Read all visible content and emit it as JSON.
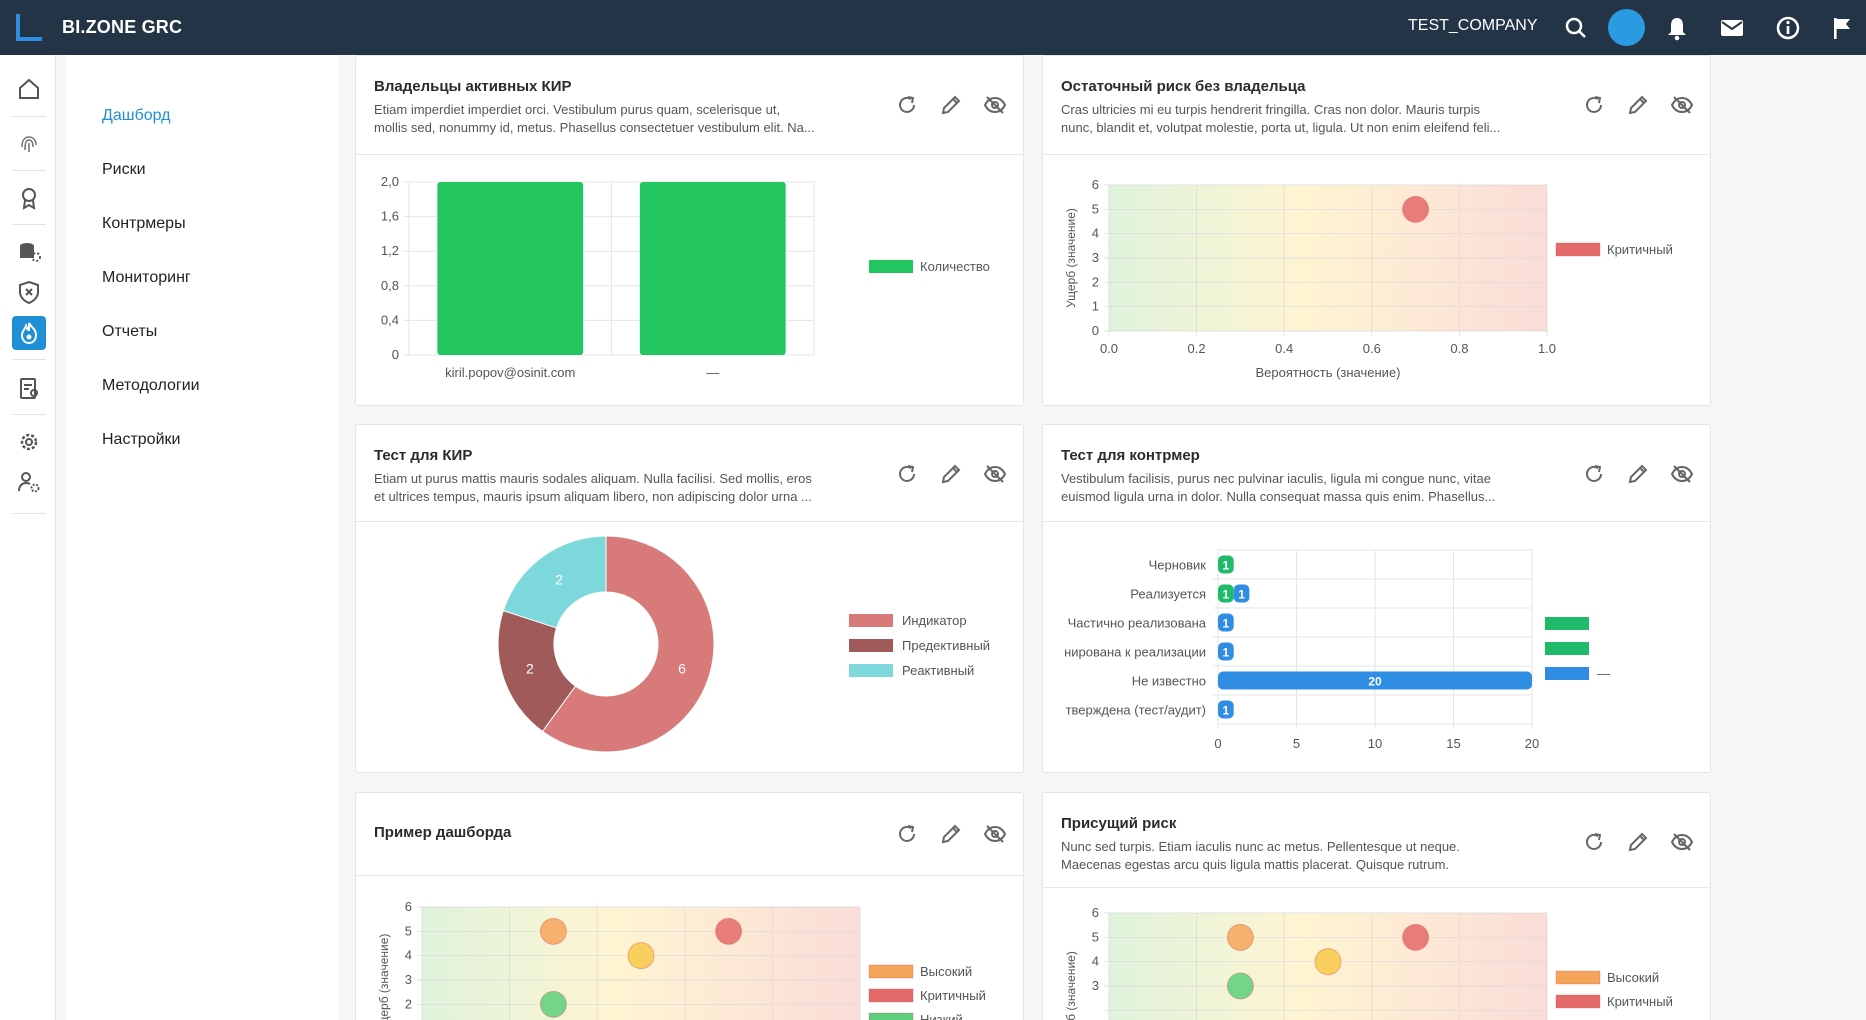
{
  "app": {
    "brand": "BI.ZONE GRC",
    "company": "TEST_COMPANY"
  },
  "topbar_icons": [
    "search-icon",
    "bell-icon",
    "mail-icon",
    "info-icon",
    "flag-icon"
  ],
  "rail_icons": [
    "home-icon",
    "fingerprint-icon",
    "award-icon",
    "database-icon",
    "shield-icon",
    "flame-icon",
    "report-icon",
    "settings-icon",
    "user-settings-icon"
  ],
  "nav": {
    "items": [
      {
        "label": "Дашборд",
        "active": true
      },
      {
        "label": "Риски"
      },
      {
        "label": "Контрмеры"
      },
      {
        "label": "Мониторинг"
      },
      {
        "label": "Отчеты"
      },
      {
        "label": "Методологии"
      },
      {
        "label": "Настройки"
      }
    ]
  },
  "cards": [
    {
      "title": "Владельцы активных КИР",
      "desc_line1": "Etiam imperdiet imperdiet orci. Vestibulum purus quam, scelerisque ut,",
      "desc_line2": "mollis sed, nonummy id, metus. Phasellus consectetuer vestibulum elit. Na..."
    },
    {
      "title": "Остаточный риск без владельца",
      "desc_line1": "Cras ultricies mi eu turpis hendrerit fringilla. Cras non dolor. Mauris turpis",
      "desc_line2": "nunc, blandit et, volutpat molestie, porta ut, ligula. Ut non enim eleifend feli..."
    },
    {
      "title": "Тест для КИР",
      "desc_line1": "Etiam ut purus mattis mauris sodales aliquam. Nulla facilisi. Sed mollis, eros",
      "desc_line2": "et ultrices tempus, mauris ipsum aliquam libero, non adipiscing dolor urna ..."
    },
    {
      "title": "Тест для контрмер",
      "desc_line1": "Vestibulum facilisis, purus nec pulvinar iaculis, ligula mi congue nunc, vitae",
      "desc_line2": "euismod ligula urna in dolor. Nulla consequat massa quis enim. Phasellus..."
    },
    {
      "title": "Пример дашборда",
      "desc_line1": "",
      "desc_line2": ""
    },
    {
      "title": "Присущий риск",
      "desc_line1": "Nunc sed turpis. Etiam iaculis nunc ac metus. Pellentesque ut neque.",
      "desc_line2": "Maecenas egestas arcu quis ligula mattis placerat. Quisque rutrum."
    }
  ],
  "chart_data": [
    {
      "type": "bar",
      "categories": [
        "kiril.popov@osinit.com",
        "—"
      ],
      "series": [
        {
          "name": "Количество",
          "values": [
            2,
            2
          ],
          "color": "#22c55e"
        }
      ],
      "ylim": [
        0,
        2
      ],
      "yticks": [
        "0",
        "0,4",
        "0,8",
        "1,2",
        "1,6",
        "2,0"
      ],
      "legend": "right"
    },
    {
      "type": "scatter",
      "xlabel": "Вероятность (значение)",
      "ylabel": "Ущерб (значение)",
      "xlim": [
        0,
        1
      ],
      "ylim": [
        0,
        6
      ],
      "xticks": [
        "0.0",
        "0.2",
        "0.4",
        "0.6",
        "0.8",
        "1.0"
      ],
      "yticks": [
        "0",
        "1",
        "2",
        "3",
        "4",
        "5",
        "6"
      ],
      "series": [
        {
          "name": "Критичный",
          "color": "#e46a6a",
          "points": [
            [
              0.7,
              5
            ]
          ]
        }
      ],
      "legend": "right"
    },
    {
      "type": "pie",
      "slices": [
        {
          "name": "Индикатор",
          "value": 6,
          "color": "#d97a7a"
        },
        {
          "name": "Предективный",
          "value": 2,
          "color": "#a05a5a"
        },
        {
          "name": "Реактивный",
          "value": 2,
          "color": "#7dd8dc"
        }
      ],
      "legend": "right"
    },
    {
      "type": "bar",
      "orientation": "horizontal",
      "categories": [
        "Черновик",
        "Реализуется",
        "Частично реализована",
        "нирована к реализации",
        "Не известно",
        "тверждена (тест/аудит)"
      ],
      "series": [
        {
          "name": "",
          "color": "#1fba6a",
          "values": [
            1,
            1,
            0,
            0,
            0,
            0
          ]
        },
        {
          "name": "",
          "color": "#2f8de4",
          "values": [
            0,
            1,
            1,
            1,
            20,
            1
          ]
        }
      ],
      "legend_names": [
        "",
        "",
        "—"
      ],
      "legend_colors": [
        "#1fba6a",
        "#1fba6a",
        "#2f8de4"
      ],
      "xlim": [
        0,
        20
      ],
      "xticks": [
        "0",
        "5",
        "10",
        "15",
        "20"
      ],
      "legend": "right"
    },
    {
      "type": "scatter",
      "ylabel": "щерб (значение)",
      "xlim": [
        0,
        1
      ],
      "ylim": [
        0,
        6
      ],
      "yticks": [
        "2",
        "3",
        "4",
        "5",
        "6"
      ],
      "series": [
        {
          "name": "Высокий",
          "color": "#f4a55a",
          "points": [
            [
              0.3,
              5
            ]
          ]
        },
        {
          "name": "Критичный",
          "color": "#e46a6a",
          "points": [
            [
              0.7,
              5
            ]
          ]
        },
        {
          "name": "",
          "color": "#f7c948",
          "points": [
            [
              0.5,
              4
            ]
          ]
        },
        {
          "name": "Низкий",
          "color": "#5ccf7a",
          "points": [
            [
              0.3,
              2
            ]
          ]
        }
      ],
      "legend": "right"
    },
    {
      "type": "scatter",
      "ylabel": "б (значение)",
      "xlim": [
        0,
        1
      ],
      "ylim": [
        0,
        6
      ],
      "yticks": [
        "3",
        "4",
        "5",
        "6"
      ],
      "series": [
        {
          "name": "Высокий",
          "color": "#f4a55a",
          "points": [
            [
              0.3,
              5
            ]
          ]
        },
        {
          "name": "Критичный",
          "color": "#e46a6a",
          "points": [
            [
              0.7,
              5
            ]
          ]
        },
        {
          "name": "",
          "color": "#f7c948",
          "points": [
            [
              0.5,
              4
            ]
          ]
        },
        {
          "name": "",
          "color": "#5ccf7a",
          "points": [
            [
              0.3,
              3
            ]
          ]
        }
      ],
      "legend": "right"
    }
  ]
}
